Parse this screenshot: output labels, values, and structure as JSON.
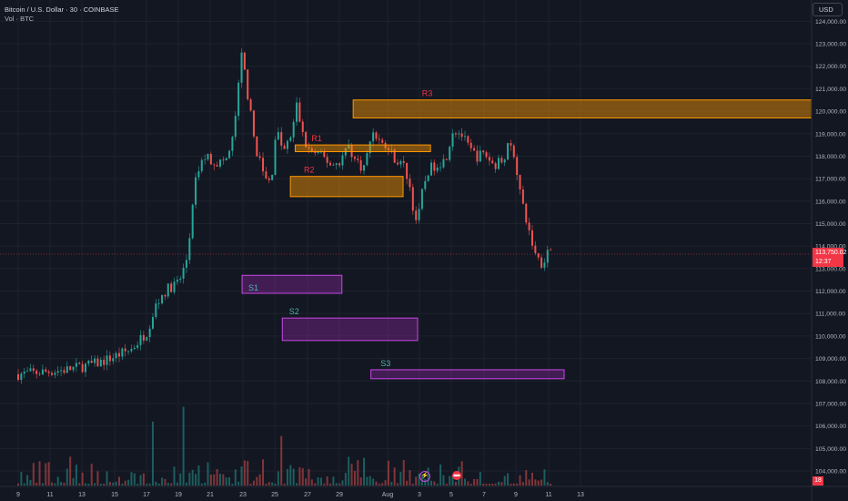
{
  "legend": {
    "title": "Bitcoin / U.S. Dollar · 30 · COINBASE",
    "volume": "Vol · BTC"
  },
  "currency_button": "USD",
  "current_price": {
    "value": "113,750.02",
    "countdown": "12:37"
  },
  "volume_tag": "18",
  "colors": {
    "background": "#131722",
    "up": "#26a69a",
    "down": "#ef5350",
    "resistance": "#ff9800",
    "support": "#c846e6",
    "resistance_label": "#f23645",
    "support_label": "#4fb3a9"
  },
  "icons": {
    "lightning": "lightning-icon",
    "event": "economic-event-icon"
  },
  "chart_data": {
    "type": "candlestick",
    "symbol": "Bitcoin / U.S. Dollar",
    "interval": "30",
    "exchange": "COINBASE",
    "y_ticks": [
      124000,
      123000,
      122000,
      121000,
      120000,
      119000,
      118000,
      117000,
      116000,
      115000,
      114000,
      113000,
      112000,
      111000,
      110000,
      109000,
      108000,
      107000,
      106000,
      105000,
      104000
    ],
    "y_tick_labels": [
      "124,000.00",
      "123,000.00",
      "122,000.00",
      "121,000.00",
      "120,000.00",
      "119,000.00",
      "118,000.00",
      "117,000.00",
      "116,000.00",
      "115,000.00",
      "114,000.00",
      "113,000.00",
      "112,000.00",
      "111,000.00",
      "110,000.00",
      "109,000.00",
      "108,000.00",
      "107,000.00",
      "106,000.00",
      "105,000.00",
      "104,000.00"
    ],
    "x_ticks": [
      "9",
      "11",
      "13",
      "15",
      "17",
      "19",
      "21",
      "23",
      "25",
      "27",
      "29",
      "Aug",
      "3",
      "5",
      "7",
      "9",
      "11",
      "13"
    ],
    "ylim": [
      103600,
      124500
    ],
    "price_path": [
      [
        0,
        108300
      ],
      [
        3,
        108500
      ],
      [
        5,
        108800
      ],
      [
        7,
        109400
      ],
      [
        8,
        110200
      ],
      [
        8.5,
        111300
      ],
      [
        9,
        111900
      ],
      [
        9.5,
        112200
      ],
      [
        10,
        112400
      ],
      [
        10.5,
        113500
      ],
      [
        10.8,
        115500
      ],
      [
        11,
        116800
      ],
      [
        11.3,
        117600
      ],
      [
        11.6,
        118000
      ],
      [
        12,
        117800
      ],
      [
        12.5,
        117700
      ],
      [
        13,
        117900
      ],
      [
        13.3,
        118700
      ],
      [
        13.6,
        120500
      ],
      [
        13.8,
        121900
      ],
      [
        13.9,
        122700
      ],
      [
        14.1,
        121500
      ],
      [
        14.4,
        120000
      ],
      [
        14.7,
        118500
      ],
      [
        15,
        117800
      ],
      [
        15.3,
        117000
      ],
      [
        15.7,
        116800
      ],
      [
        16,
        119200
      ],
      [
        16.5,
        118200
      ],
      [
        17,
        119000
      ],
      [
        17.3,
        120300
      ],
      [
        17.7,
        118800
      ],
      [
        18,
        118300
      ],
      [
        18.5,
        118100
      ],
      [
        19,
        117900
      ],
      [
        19.5,
        117600
      ],
      [
        20,
        117800
      ],
      [
        20.5,
        118500
      ],
      [
        21,
        117700
      ],
      [
        21.5,
        117500
      ],
      [
        22,
        119200
      ],
      [
        22.5,
        118600
      ],
      [
        23,
        118300
      ],
      [
        23.5,
        117800
      ],
      [
        24,
        117500
      ],
      [
        24.3,
        116700
      ],
      [
        24.5,
        115800
      ],
      [
        24.8,
        114900
      ],
      [
        25,
        116100
      ],
      [
        25.4,
        117300
      ],
      [
        26,
        117700
      ],
      [
        26.5,
        117800
      ],
      [
        27,
        119200
      ],
      [
        27.5,
        119000
      ],
      [
        28,
        118300
      ],
      [
        28.5,
        118000
      ],
      [
        29,
        118100
      ],
      [
        29.5,
        117600
      ],
      [
        30,
        117800
      ],
      [
        30.5,
        118500
      ],
      [
        30.8,
        118100
      ],
      [
        31,
        117200
      ],
      [
        31.3,
        115800
      ],
      [
        31.6,
        115000
      ],
      [
        31.8,
        114400
      ],
      [
        32,
        113900
      ],
      [
        32.2,
        113600
      ],
      [
        32.5,
        113200
      ],
      [
        32.8,
        113700
      ],
      [
        33.1,
        113900
      ]
    ],
    "zones": [
      {
        "label": "R3",
        "kind": "resistance",
        "x_from": 9.4,
        "x_to": "right-edge",
        "y_from": 119700,
        "y_to": 120500
      },
      {
        "label": "R1",
        "kind": "resistance",
        "x_from": 5.8,
        "x_to": 14.2,
        "y_from": 118200,
        "y_to": 118500
      },
      {
        "label": "R2",
        "kind": "resistance",
        "x_from": 5.5,
        "x_to": 12.5,
        "y_from": 116200,
        "y_to": 117100
      },
      {
        "label": "S1",
        "kind": "support",
        "x_from": 2.5,
        "x_to": 8.7,
        "y_from": 111900,
        "y_to": 112700
      },
      {
        "label": "S2",
        "kind": "support",
        "x_from": 5,
        "x_to": 13.4,
        "y_from": 109800,
        "y_to": 110800
      },
      {
        "label": "S3",
        "kind": "support",
        "x_from": 10.5,
        "x_to": 22.5,
        "y_from": 108100,
        "y_to": 108500
      }
    ],
    "last_price": 113750.02
  }
}
